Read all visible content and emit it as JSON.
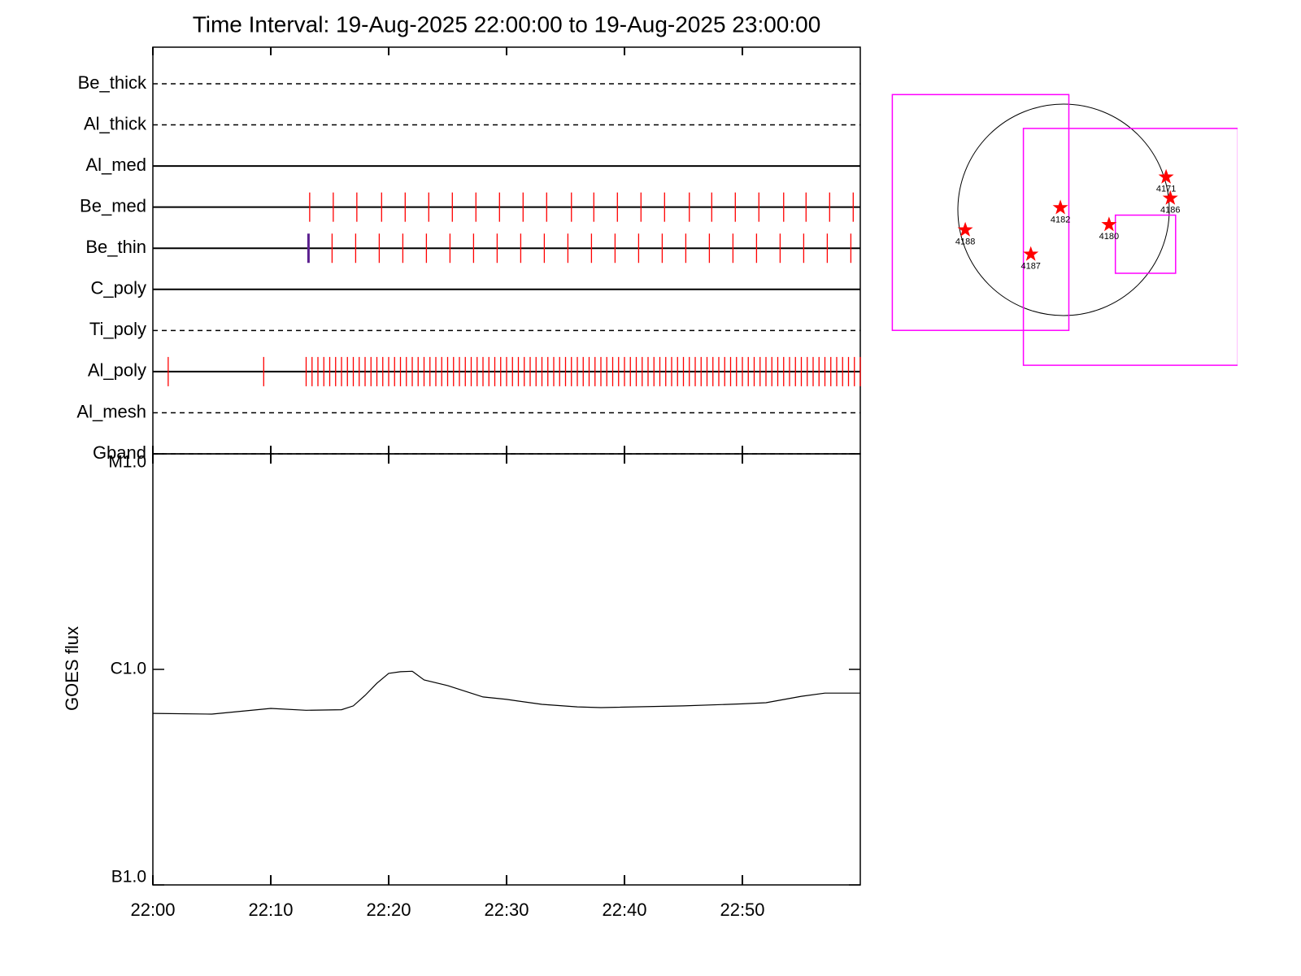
{
  "chart_data": [
    {
      "type": "timeline",
      "title": "Time Interval: 19-Aug-2025 22:00:00 to 19-Aug-2025 23:00:00",
      "xlim": [
        0,
        60
      ],
      "xticks": [
        0,
        10,
        20,
        30,
        40,
        50
      ],
      "event_color": "#ff0000",
      "line_color": "#000000",
      "series": [
        {
          "name": "Be_thick",
          "style": "dashed",
          "events": []
        },
        {
          "name": "Al_thick",
          "style": "dashed",
          "events": []
        },
        {
          "name": "Al_med",
          "style": "solid",
          "events": []
        },
        {
          "name": "Be_med",
          "style": "solid",
          "events": [
            13.3,
            15.3,
            17.3,
            19.4,
            21.4,
            23.4,
            25.4,
            27.4,
            29.4,
            31.4,
            33.4,
            35.5,
            37.4,
            39.4,
            41.4,
            43.4,
            45.5,
            47.4,
            49.4,
            51.4,
            53.5,
            55.4,
            57.4,
            59.4
          ]
        },
        {
          "name": "Be_thin",
          "style": "solid",
          "events": [
            15.2,
            17.2,
            19.2,
            21.2,
            23.2,
            25.2,
            27.2,
            29.2,
            31.2,
            33.2,
            35.2,
            37.2,
            39.2,
            41.2,
            43.2,
            45.2,
            47.2,
            49.2,
            51.2,
            53.2,
            55.2,
            57.2,
            59.2
          ],
          "highlight": {
            "values": [
              13.2
            ],
            "color": "#5b1f8f"
          }
        },
        {
          "name": "C_poly",
          "style": "solid",
          "events": []
        },
        {
          "name": "Ti_poly",
          "style": "dashed",
          "events": []
        },
        {
          "name": "Al_poly",
          "style": "solid",
          "events": [
            1.3,
            9.4,
            13,
            13.5,
            14,
            14.5,
            15,
            15.5,
            16,
            16.5,
            17,
            17.5,
            18,
            18.5,
            19,
            19.5,
            20,
            20.5,
            21,
            21.5,
            22,
            22.5,
            23,
            23.5,
            24,
            24.5,
            25,
            25.5,
            26,
            26.5,
            27,
            27.5,
            28,
            28.5,
            29,
            29.5,
            30,
            30.5,
            31,
            31.5,
            32,
            32.5,
            33,
            33.5,
            34,
            34.5,
            35,
            35.5,
            36,
            36.5,
            37,
            37.5,
            38,
            38.5,
            39,
            39.5,
            40,
            40.5,
            41,
            41.5,
            42,
            42.5,
            43,
            43.5,
            44,
            44.5,
            45,
            45.5,
            46,
            46.5,
            47,
            47.5,
            48,
            48.5,
            49,
            49.5,
            50,
            50.5,
            51,
            51.5,
            52,
            52.5,
            53,
            53.5,
            54,
            54.5,
            55,
            55.5,
            56,
            56.5,
            57,
            57.5,
            58,
            58.5,
            59,
            59.5,
            60
          ]
        },
        {
          "name": "Al_mesh",
          "style": "dashed",
          "events": []
        },
        {
          "name": "Gband",
          "style": "dashed",
          "events": []
        }
      ]
    },
    {
      "type": "line",
      "ylabel": "GOES flux",
      "log_y": true,
      "color": "#000000",
      "xlim": [
        0,
        60
      ],
      "xticks": [
        {
          "value": 0,
          "label": "22:00"
        },
        {
          "value": 10,
          "label": "22:10"
        },
        {
          "value": 20,
          "label": "22:20"
        },
        {
          "value": 30,
          "label": "22:30"
        },
        {
          "value": 40,
          "label": "22:40"
        },
        {
          "value": 50,
          "label": "22:50"
        }
      ],
      "ylim": [
        1e-07,
        1e-05
      ],
      "yticks": [
        {
          "value": 1e-07,
          "label": "B1.0"
        },
        {
          "value": 1e-06,
          "label": "C1.0"
        },
        {
          "value": 1e-05,
          "label": "M1.0"
        }
      ],
      "x": [
        0,
        5,
        10,
        13,
        16,
        17,
        18,
        19,
        20,
        21,
        22,
        23,
        25,
        28,
        30,
        33,
        36,
        38,
        45,
        50,
        52,
        55,
        57,
        60
      ],
      "values": [
        6.25e-07,
        6.2e-07,
        6.59e-07,
        6.46e-07,
        6.5e-07,
        6.77e-07,
        7.57e-07,
        8.62e-07,
        9.58e-07,
        9.75e-07,
        9.8e-07,
        8.93e-07,
        8.41e-07,
        7.45e-07,
        7.26e-07,
        6.88e-07,
        6.7e-07,
        6.65e-07,
        6.77e-07,
        6.92e-07,
        7e-07,
        7.5e-07,
        7.76e-07,
        7.76e-07
      ]
    },
    {
      "type": "map",
      "point_color": "#ff0000",
      "box_color": "#ff00ff",
      "points": [
        {
          "label": "4188",
          "x": -0.93,
          "y": -0.19
        },
        {
          "label": "4187",
          "x": -0.31,
          "y": -0.42
        },
        {
          "label": "4182",
          "x": -0.03,
          "y": 0.02
        },
        {
          "label": "4180",
          "x": 0.43,
          "y": -0.14
        },
        {
          "label": "4171",
          "x": 0.97,
          "y": 0.31
        },
        {
          "label": "4186",
          "x": 1.01,
          "y": 0.11
        }
      ],
      "boxes": [
        {
          "x": [
            -1.62,
            0.05
          ],
          "y": [
            1.09,
            -1.14
          ]
        },
        {
          "x": [
            -0.38,
            1.65
          ],
          "y": [
            0.77,
            -1.47
          ]
        },
        {
          "x": [
            0.49,
            1.06
          ],
          "y": [
            -0.05,
            -0.6
          ]
        }
      ]
    }
  ]
}
